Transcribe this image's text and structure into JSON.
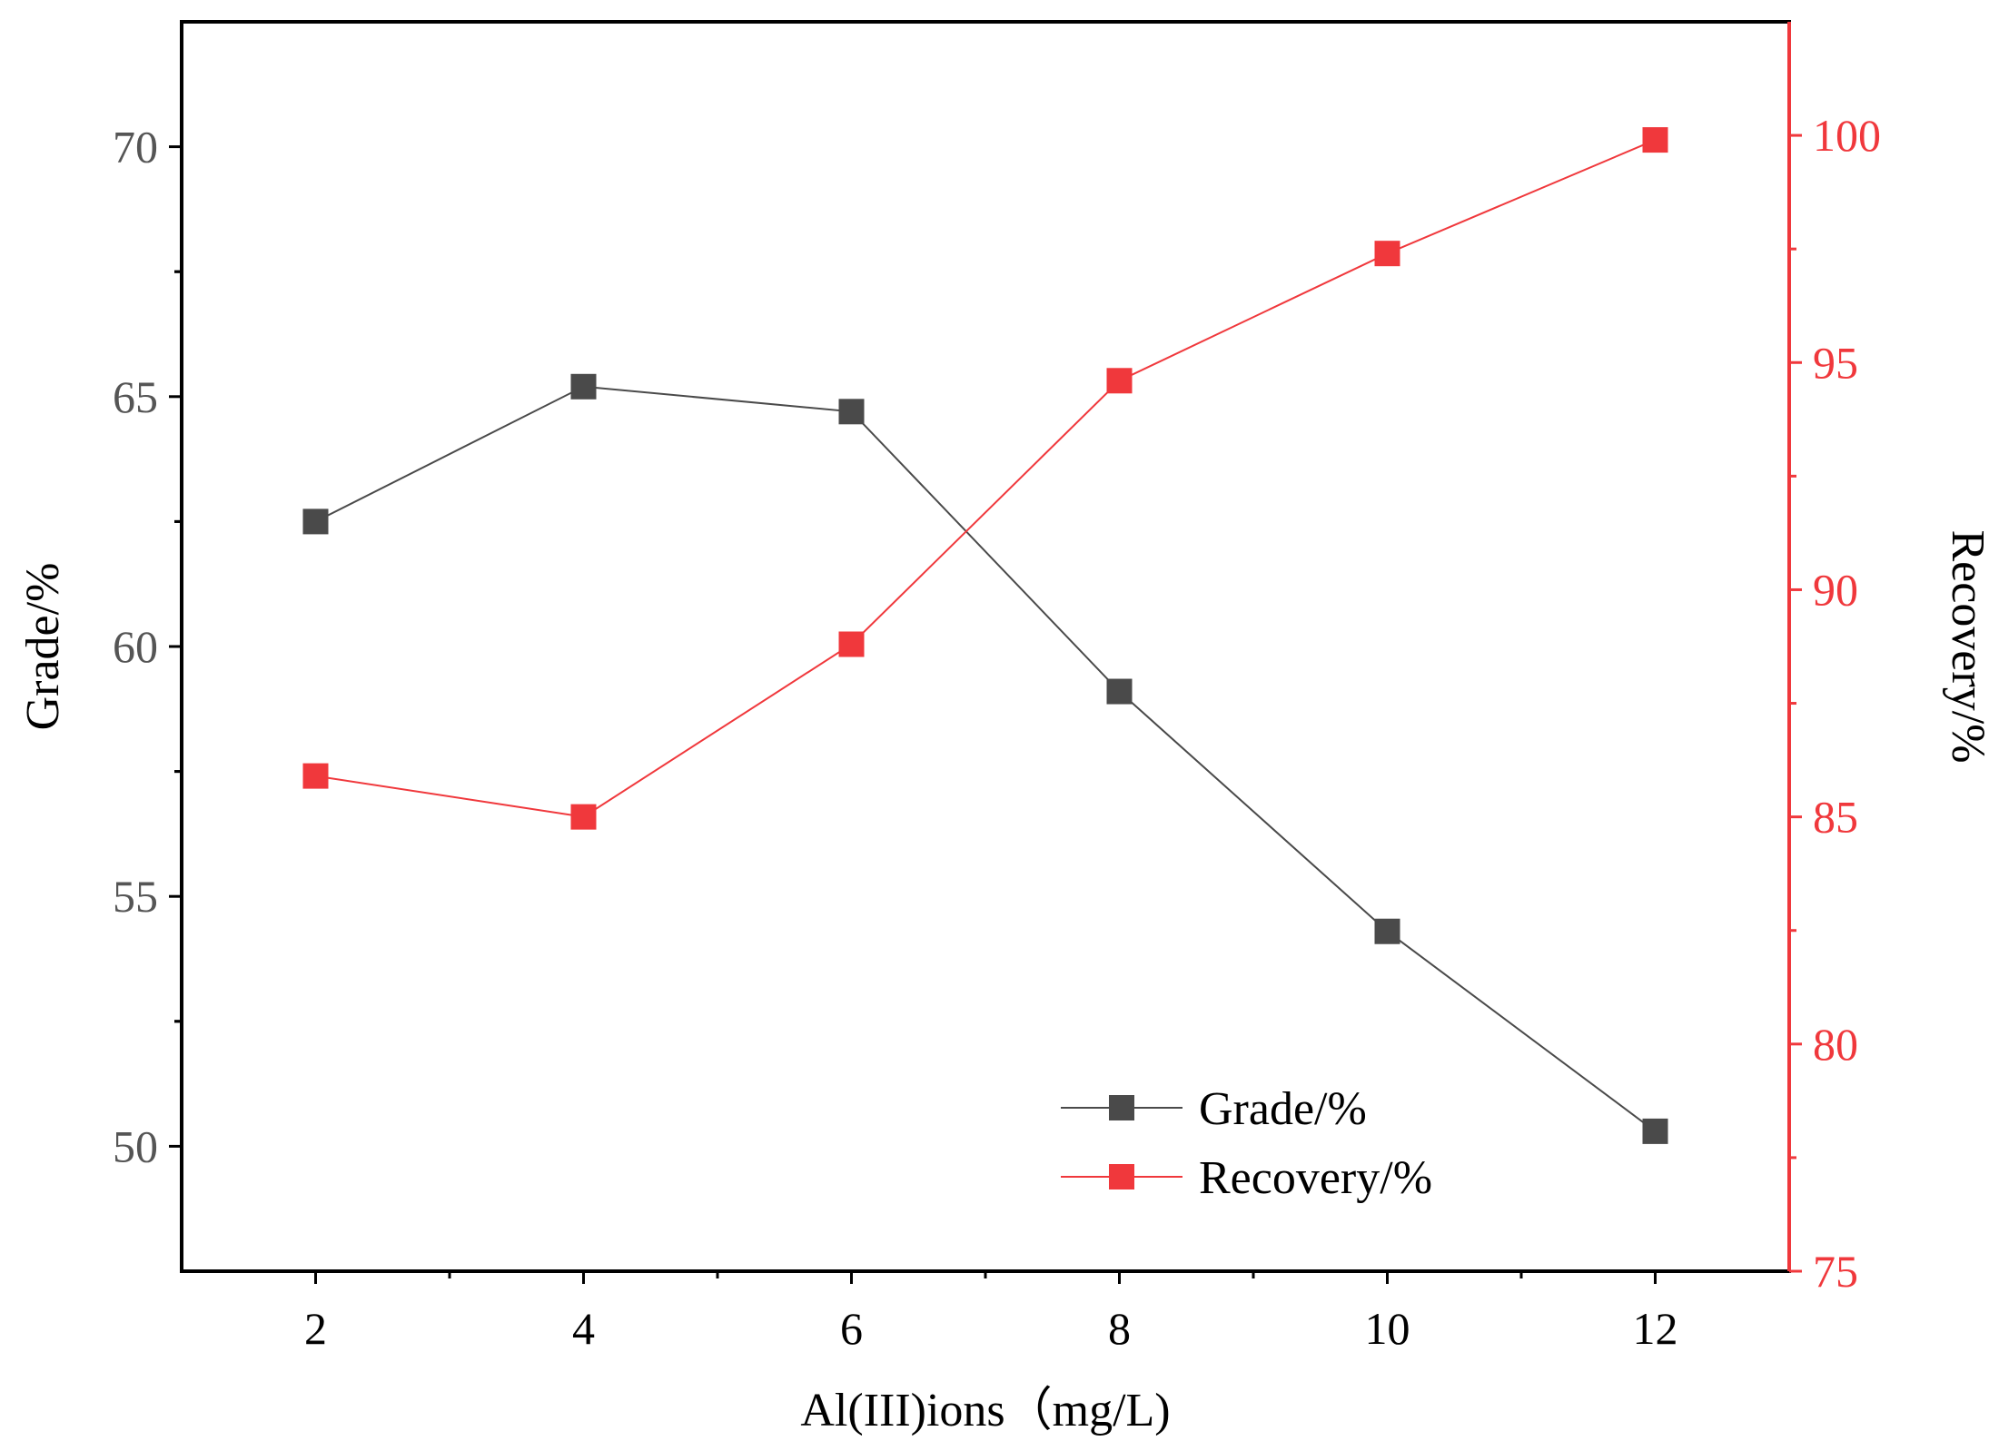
{
  "chart_data": {
    "type": "line",
    "title": "",
    "xlabel": "Al(III)ions（mg/L)",
    "ylabel_left": "Grade/%",
    "ylabel_right": "Recovery/%",
    "x": [
      2,
      4,
      6,
      8,
      10,
      12
    ],
    "xlim": [
      1,
      13
    ],
    "xticks": [
      2,
      4,
      6,
      8,
      10,
      12
    ],
    "xtick_labels": [
      "2",
      "4",
      "6",
      "8",
      "10",
      "12"
    ],
    "ylim_left": [
      47.5,
      72.5
    ],
    "yticks_left": [
      50,
      55,
      60,
      65,
      70
    ],
    "ytick_labels_left": [
      "50",
      "55",
      "60",
      "65",
      "70"
    ],
    "ylim_right": [
      75,
      102.5
    ],
    "yticks_right": [
      75,
      80,
      85,
      90,
      95,
      100
    ],
    "ytick_labels_right": [
      "75",
      "80",
      "85",
      "90",
      "95",
      "100"
    ],
    "grid": false,
    "legend_position": "bottom-right",
    "series": [
      {
        "name": "Grade/%",
        "axis": "left",
        "color": "#4a4a4a",
        "marker": "square",
        "values": [
          62.5,
          65.2,
          64.7,
          59.1,
          54.3,
          50.3
        ]
      },
      {
        "name": "Recovery/%",
        "axis": "right",
        "color": "#f0383c",
        "marker": "square",
        "values": [
          85.9,
          85.0,
          88.8,
          94.6,
          97.4,
          99.9
        ]
      }
    ],
    "colors": {
      "left_axis": "#000000",
      "right_axis": "#f0383c"
    }
  }
}
